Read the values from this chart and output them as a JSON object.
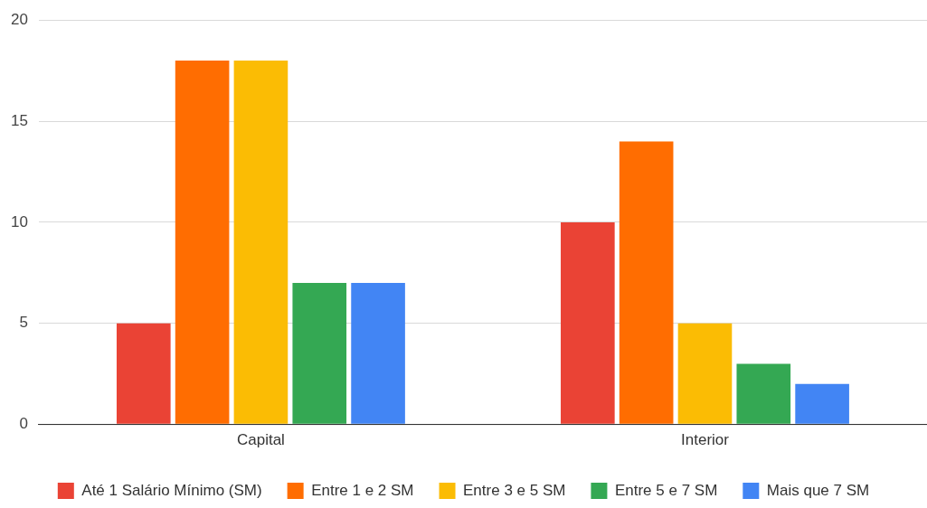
{
  "chart_data": {
    "type": "bar",
    "categories": [
      "Capital",
      "Interior"
    ],
    "series": [
      {
        "name": "Até 1 Salário Mínimo (SM)",
        "color": "#ea4335",
        "values": [
          5,
          10
        ]
      },
      {
        "name": "Entre 1 e 2 SM",
        "color": "#ff6d01",
        "values": [
          18,
          14
        ]
      },
      {
        "name": "Entre 3 e 5 SM",
        "color": "#fbbc04",
        "values": [
          18,
          5
        ]
      },
      {
        "name": "Entre 5 e 7 SM",
        "color": "#34a853",
        "values": [
          7,
          3
        ]
      },
      {
        "name": "Mais que 7 SM",
        "color": "#4285f4",
        "values": [
          7,
          2
        ]
      }
    ],
    "ylim": [
      0,
      20
    ],
    "yticks": [
      0,
      5,
      10,
      15,
      20
    ],
    "grid": "y",
    "legend": "bottom"
  }
}
